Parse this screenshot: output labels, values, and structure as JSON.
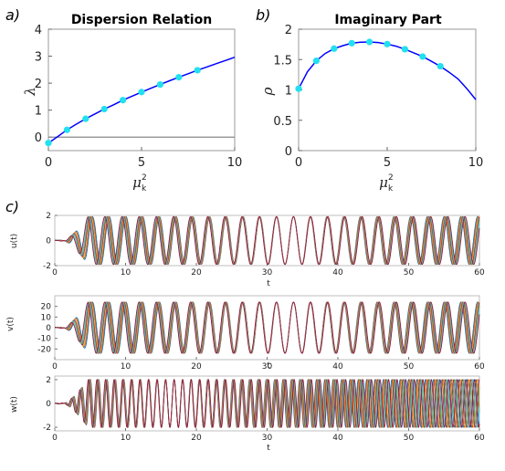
{
  "chart_data": [
    {
      "panel": "a)",
      "type": "line",
      "title": "Dispersion Relation",
      "xlabel_base": "μ",
      "xlabel_sup": "2",
      "xlabel_sub": "k",
      "ylabel": "λ",
      "xlim": [
        0,
        10
      ],
      "ylim": [
        -0.5,
        4
      ],
      "xticks": [
        "0",
        "5",
        "10"
      ],
      "yticks": [
        "0",
        "1",
        "2",
        "3",
        "4"
      ],
      "curve_color": "#0000ff",
      "marker_color": "#22e0f0",
      "baseline_color": "#888888",
      "curve": [
        [
          0,
          -0.22
        ],
        [
          0.5,
          0.02
        ],
        [
          1,
          0.27
        ],
        [
          1.5,
          0.48
        ],
        [
          2,
          0.68
        ],
        [
          2.5,
          0.86
        ],
        [
          3,
          1.04
        ],
        [
          3.5,
          1.2
        ],
        [
          4,
          1.37
        ],
        [
          4.5,
          1.52
        ],
        [
          5,
          1.67
        ],
        [
          5.5,
          1.81
        ],
        [
          6,
          1.95
        ],
        [
          6.5,
          2.09
        ],
        [
          7,
          2.22
        ],
        [
          7.5,
          2.35
        ],
        [
          8,
          2.48
        ],
        [
          8.5,
          2.6
        ],
        [
          9,
          2.72
        ],
        [
          9.5,
          2.84
        ],
        [
          10,
          2.96
        ]
      ],
      "markers": [
        [
          0,
          -0.22
        ],
        [
          1,
          0.27
        ],
        [
          2,
          0.68
        ],
        [
          3,
          1.04
        ],
        [
          4,
          1.37
        ],
        [
          5,
          1.67
        ],
        [
          6,
          1.95
        ],
        [
          7,
          2.22
        ],
        [
          8,
          2.48
        ]
      ]
    },
    {
      "panel": "b)",
      "type": "line",
      "title": "Imaginary Part",
      "xlabel_base": "μ",
      "xlabel_sup": "2",
      "xlabel_sub": "k",
      "ylabel": "ρ",
      "xlim": [
        0,
        10
      ],
      "ylim": [
        0,
        2
      ],
      "xticks": [
        "0",
        "5",
        "10"
      ],
      "yticks": [
        "0",
        "0.5",
        "1",
        "1.5",
        "2"
      ],
      "curve_color": "#0000ff",
      "marker_color": "#22e0f0",
      "curve": [
        [
          0,
          1.02
        ],
        [
          0.5,
          1.3
        ],
        [
          1,
          1.48
        ],
        [
          1.5,
          1.6
        ],
        [
          2,
          1.68
        ],
        [
          2.5,
          1.73
        ],
        [
          3,
          1.77
        ],
        [
          3.5,
          1.785
        ],
        [
          4,
          1.79
        ],
        [
          4.5,
          1.78
        ],
        [
          5,
          1.755
        ],
        [
          5.5,
          1.72
        ],
        [
          6,
          1.67
        ],
        [
          6.5,
          1.61
        ],
        [
          7,
          1.55
        ],
        [
          7.5,
          1.47
        ],
        [
          8,
          1.39
        ],
        [
          8.5,
          1.29
        ],
        [
          9,
          1.18
        ],
        [
          9.5,
          1.02
        ],
        [
          10,
          0.84
        ]
      ],
      "markers": [
        [
          0,
          1.02
        ],
        [
          1,
          1.48
        ],
        [
          2,
          1.68
        ],
        [
          3,
          1.77
        ],
        [
          4,
          1.79
        ],
        [
          5,
          1.755
        ],
        [
          6,
          1.67
        ],
        [
          7,
          1.55
        ],
        [
          8,
          1.39
        ]
      ]
    },
    {
      "panel": "c)",
      "type": "line",
      "ylabel": "u(t)",
      "xlabel": "t",
      "xlim": [
        0,
        60
      ],
      "ylim": [
        -2,
        2
      ],
      "xticks": [
        "0",
        "10",
        "20",
        "30",
        "40",
        "50",
        "60"
      ],
      "yticks": [
        "2",
        "0",
        "-2"
      ],
      "amplitude": 1.9,
      "period": 2.4,
      "series_colors": [
        "#0072bd",
        "#d95319",
        "#edb120",
        "#7e2f8e",
        "#77ac30",
        "#4dbeee",
        "#a2142f"
      ]
    },
    {
      "type": "line",
      "ylabel": "v(t)",
      "xlabel": "t",
      "xlim": [
        0,
        60
      ],
      "ylim": [
        -30,
        30
      ],
      "xticks": [
        "0",
        "10",
        "20",
        "30",
        "40",
        "50",
        "60"
      ],
      "yticks": [
        "20",
        "10",
        "0",
        "-10",
        "-20"
      ],
      "amplitude": 24,
      "period": 2.4,
      "series_colors": [
        "#0072bd",
        "#d95319",
        "#edb120",
        "#7e2f8e",
        "#77ac30",
        "#4dbeee",
        "#a2142f"
      ]
    },
    {
      "type": "line",
      "ylabel": "w(t)",
      "xlabel": "t",
      "xlim": [
        0,
        60
      ],
      "ylim": [
        -2.3,
        2.3
      ],
      "xticks": [
        "0",
        "10",
        "20",
        "30",
        "40",
        "50",
        "60"
      ],
      "yticks": [
        "2",
        "0",
        "-2"
      ],
      "amplitude": 2.0,
      "period": 1.2,
      "series_colors": [
        "#0072bd",
        "#d95319",
        "#edb120",
        "#7e2f8e",
        "#77ac30",
        "#4dbeee",
        "#a2142f"
      ]
    }
  ]
}
